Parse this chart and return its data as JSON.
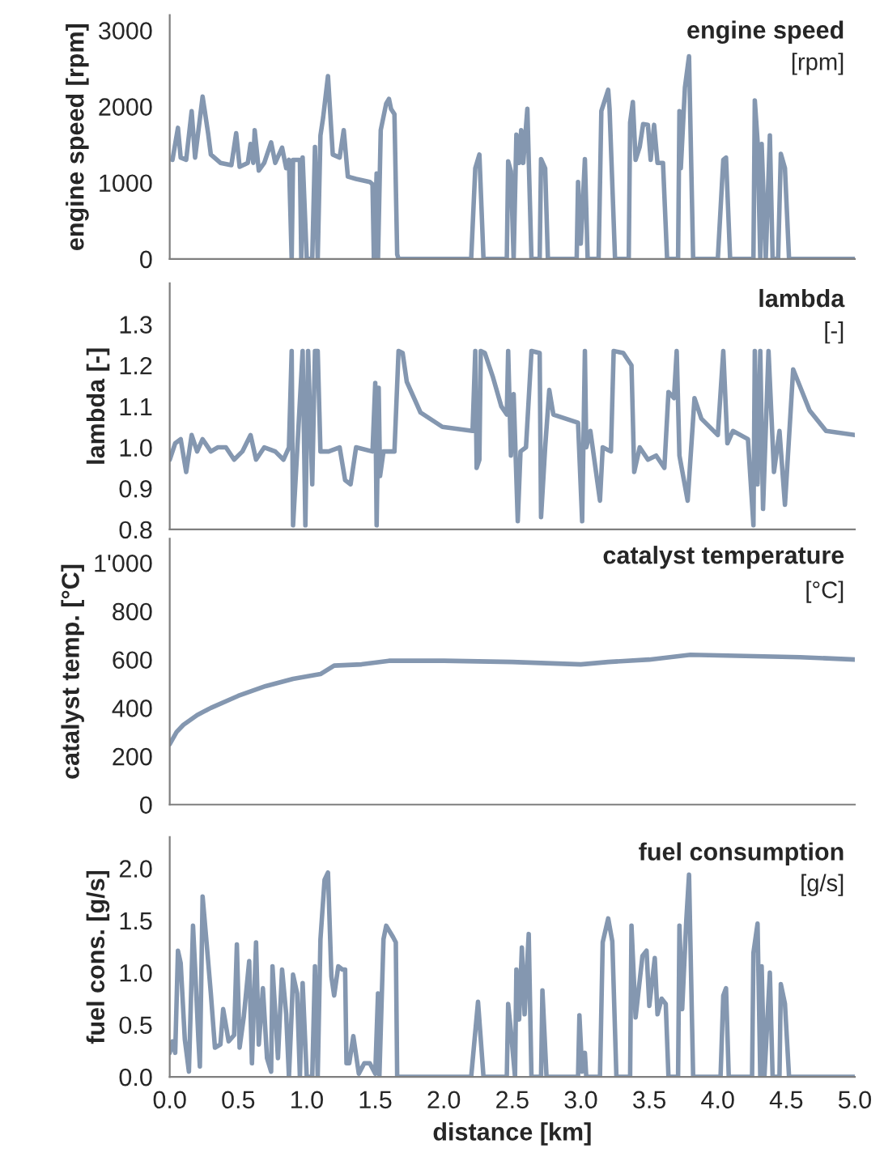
{
  "chart_data": [
    {
      "type": "line",
      "title": "engine speed",
      "subtitle": "[rpm]",
      "ylabel": "engine speed [rpm]",
      "xlim": [
        0,
        5
      ],
      "ylim": [
        0,
        3200
      ],
      "yticks": [
        0,
        1000,
        2000,
        3000
      ],
      "tick_labels": "y",
      "grid": false,
      "legend": false,
      "series": [
        {
          "color": "#8497b0",
          "x": [
            0.02,
            0.06,
            0.08,
            0.12,
            0.16,
            0.185,
            0.24,
            0.28,
            0.3,
            0.37,
            0.45,
            0.485,
            0.51,
            0.57,
            0.59,
            0.61,
            0.62,
            0.65,
            0.69,
            0.74,
            0.77,
            0.82,
            0.85,
            0.87,
            0.89,
            0.9,
            0.95,
            0.96,
            0.97,
            1.0,
            1.02,
            1.04,
            1.06,
            1.08,
            1.1,
            1.12,
            1.155,
            1.19,
            1.24,
            1.27,
            1.3,
            1.36,
            1.46,
            1.48,
            1.49,
            1.51,
            1.52,
            1.54,
            1.58,
            1.6,
            1.615,
            1.64,
            1.66,
            1.67,
            2.2,
            2.23,
            2.26,
            2.29,
            2.46,
            2.47,
            2.49,
            2.51,
            2.53,
            2.55,
            2.565,
            2.58,
            2.61,
            2.64,
            2.7,
            2.71,
            2.74,
            2.76,
            2.97,
            2.98,
            3.0,
            3.03,
            3.05,
            3.13,
            3.15,
            3.2,
            3.21,
            3.25,
            3.35,
            3.36,
            3.38,
            3.4,
            3.43,
            3.455,
            3.49,
            3.51,
            3.535,
            3.56,
            3.6,
            3.63,
            3.71,
            3.72,
            3.73,
            3.76,
            3.79,
            3.82,
            4.0,
            4.04,
            4.06,
            4.09,
            4.26,
            4.27,
            4.29,
            4.31,
            4.32,
            4.35,
            4.38,
            4.4,
            4.44,
            4.46,
            4.49,
            4.52,
            5.0
          ],
          "values": [
            1300,
            1720,
            1330,
            1300,
            1940,
            1330,
            2130,
            1650,
            1370,
            1260,
            1230,
            1650,
            1210,
            1260,
            1510,
            1260,
            1690,
            1160,
            1260,
            1530,
            1260,
            1460,
            1190,
            1300,
            0,
            1300,
            1300,
            0,
            1330,
            0,
            0,
            0,
            1470,
            0,
            1620,
            1860,
            2400,
            1370,
            1330,
            1690,
            1080,
            1050,
            1010,
            980,
            0,
            1120,
            0,
            1690,
            2040,
            2100,
            1970,
            1900,
            60,
            0,
            0,
            1190,
            1370,
            0,
            0,
            1280,
            1150,
            0,
            1630,
            1260,
            1690,
            1260,
            1970,
            0,
            0,
            1310,
            1190,
            0,
            0,
            1010,
            200,
            1310,
            0,
            0,
            1940,
            2220,
            1970,
            0,
            0,
            1790,
            2060,
            1300,
            1470,
            1770,
            1760,
            1300,
            1760,
            1260,
            1260,
            0,
            0,
            1940,
            1190,
            2250,
            2660,
            0,
            0,
            1300,
            1330,
            0,
            0,
            2080,
            1550,
            0,
            1510,
            0,
            1620,
            0,
            0,
            1380,
            1190,
            0,
            0
          ]
        }
      ]
    },
    {
      "type": "line",
      "title": "lambda",
      "subtitle": "[-]",
      "ylabel": "lambda [-]",
      "xlim": [
        0,
        5
      ],
      "ylim": [
        0.8,
        1.4
      ],
      "yticks": [
        {
          "value": 0.8,
          "label": "0.8"
        },
        {
          "value": 0.9,
          "label": "0.9"
        },
        {
          "value": 1.0,
          "label": "1.0"
        },
        {
          "value": 1.1,
          "label": "1.1"
        },
        {
          "value": 1.2,
          "label": "1.2"
        },
        {
          "value": 1.3,
          "label": "1.3"
        }
      ],
      "tick_labels": "y",
      "grid": false,
      "legend": false,
      "series": [
        {
          "color": "#8497b0",
          "x": [
            0,
            0.04,
            0.08,
            0.12,
            0.16,
            0.2,
            0.24,
            0.3,
            0.35,
            0.41,
            0.47,
            0.53,
            0.59,
            0.63,
            0.69,
            0.77,
            0.83,
            0.87,
            0.89,
            0.9,
            0.93,
            0.97,
            0.99,
            1.01,
            1.04,
            1.06,
            1.08,
            1.1,
            1.16,
            1.24,
            1.28,
            1.32,
            1.36,
            1.48,
            1.5,
            1.51,
            1.525,
            1.535,
            1.56,
            1.64,
            1.67,
            1.7,
            1.73,
            1.83,
            1.99,
            2.21,
            2.23,
            2.24,
            2.26,
            2.27,
            2.3,
            2.36,
            2.42,
            2.46,
            2.47,
            2.49,
            2.51,
            2.54,
            2.56,
            2.6,
            2.64,
            2.7,
            2.71,
            2.74,
            2.77,
            2.8,
            2.98,
            3.01,
            3.03,
            3.04,
            3.07,
            3.14,
            3.16,
            3.22,
            3.24,
            3.31,
            3.37,
            3.39,
            3.43,
            3.49,
            3.55,
            3.61,
            3.64,
            3.68,
            3.7,
            3.72,
            3.78,
            3.83,
            3.88,
            4.0,
            4.04,
            4.07,
            4.11,
            4.22,
            4.26,
            4.27,
            4.29,
            4.31,
            4.33,
            4.37,
            4.41,
            4.45,
            4.49,
            4.55,
            4.67,
            4.79,
            5.0
          ],
          "values": [
            0.97,
            1.01,
            1.02,
            0.94,
            1.03,
            0.99,
            1.02,
            0.99,
            1.0,
            1.0,
            0.97,
            0.99,
            1.03,
            0.97,
            1.0,
            0.99,
            0.97,
            1.0,
            1.235,
            0.81,
            0.99,
            1.235,
            0.81,
            1.235,
            0.91,
            1.235,
            1.235,
            0.99,
            0.99,
            1.0,
            0.92,
            0.91,
            1.0,
            0.99,
            1.157,
            0.81,
            1.145,
            0.93,
            0.99,
            0.99,
            1.235,
            1.23,
            1.16,
            1.085,
            1.05,
            1.04,
            1.235,
            0.95,
            0.97,
            1.235,
            1.23,
            1.17,
            1.1,
            1.08,
            1.235,
            0.98,
            1.13,
            0.82,
            0.99,
            1.0,
            1.235,
            1.23,
            0.83,
            1.0,
            1.14,
            1.08,
            1.06,
            0.82,
            1.235,
            1.0,
            1.04,
            0.87,
            1.0,
            0.99,
            1.235,
            1.23,
            1.2,
            0.94,
            1.0,
            0.97,
            0.98,
            0.95,
            1.135,
            1.12,
            1.235,
            0.98,
            0.87,
            1.12,
            1.07,
            1.03,
            1.235,
            1.01,
            1.04,
            1.02,
            0.81,
            1.235,
            0.91,
            1.235,
            0.85,
            1.235,
            0.94,
            1.04,
            0.86,
            1.19,
            1.09,
            1.04,
            1.03
          ]
        }
      ]
    },
    {
      "type": "line",
      "title": "catalyst temperature",
      "subtitle": "[°C]",
      "ylabel": "catalyst temp. [°C]",
      "xlim": [
        0,
        5
      ],
      "ylim": [
        0,
        1100
      ],
      "yticks": [
        0,
        200,
        400,
        600,
        800,
        {
          "value": 1000,
          "label": "1'000"
        }
      ],
      "tick_labels": "y",
      "grid": false,
      "legend": false,
      "series": [
        {
          "color": "#8497b0",
          "x": [
            0,
            0.05,
            0.1,
            0.2,
            0.3,
            0.5,
            0.7,
            0.9,
            1.0,
            1.1,
            1.2,
            1.4,
            1.6,
            2.0,
            2.5,
            3.0,
            3.2,
            3.5,
            3.8,
            4.2,
            4.6,
            5.0
          ],
          "values": [
            250,
            300,
            330,
            370,
            400,
            450,
            490,
            520,
            530,
            540,
            575,
            580,
            595,
            595,
            590,
            580,
            590,
            600,
            620,
            615,
            610,
            600
          ]
        }
      ]
    },
    {
      "type": "line",
      "title": "fuel consumption",
      "subtitle": "[g/s]",
      "ylabel": "fuel cons. [g/s]",
      "xlabel": "distance [km]",
      "xlim": [
        0,
        5
      ],
      "xticks": [
        {
          "value": 0,
          "label": "0.0"
        },
        {
          "value": 0.5,
          "label": "0.5"
        },
        {
          "value": 1,
          "label": "1.0"
        },
        {
          "value": 1.5,
          "label": "1.5"
        },
        {
          "value": 2,
          "label": "2.0"
        },
        {
          "value": 2.5,
          "label": "2.5"
        },
        {
          "value": 3,
          "label": "3.0"
        },
        {
          "value": 3.5,
          "label": "3.5"
        },
        {
          "value": 4,
          "label": "4.0"
        },
        {
          "value": 4.5,
          "label": "4.5"
        },
        {
          "value": 5,
          "label": "5.0"
        }
      ],
      "ylim": [
        0,
        2.3
      ],
      "yticks": [
        {
          "value": 0,
          "label": "0.0"
        },
        {
          "value": 0.5,
          "label": "0.5"
        },
        {
          "value": 1.0,
          "label": "1.0"
        },
        {
          "value": 1.5,
          "label": "1.5"
        },
        {
          "value": 2.0,
          "label": "2.0"
        }
      ],
      "grid": false,
      "legend": false,
      "series": [
        {
          "color": "#8497b0",
          "x": [
            0,
            0.02,
            0.04,
            0.06,
            0.08,
            0.11,
            0.14,
            0.17,
            0.185,
            0.21,
            0.22,
            0.24,
            0.27,
            0.3,
            0.33,
            0.37,
            0.39,
            0.43,
            0.47,
            0.49,
            0.51,
            0.54,
            0.58,
            0.6,
            0.63,
            0.65,
            0.68,
            0.71,
            0.74,
            0.75,
            0.79,
            0.82,
            0.85,
            0.87,
            0.89,
            0.9,
            0.93,
            0.95,
            0.97,
            1.0,
            1.04,
            1.06,
            1.08,
            1.1,
            1.13,
            1.155,
            1.18,
            1.2,
            1.23,
            1.26,
            1.28,
            1.29,
            1.31,
            1.34,
            1.38,
            1.42,
            1.46,
            1.5,
            1.52,
            1.53,
            1.56,
            1.58,
            1.63,
            1.65,
            1.66,
            2.2,
            2.25,
            2.29,
            2.46,
            2.47,
            2.49,
            2.52,
            2.53,
            2.55,
            2.57,
            2.59,
            2.62,
            2.64,
            2.71,
            2.72,
            2.75,
            2.98,
            2.99,
            3.01,
            3.03,
            3.04,
            3.14,
            3.16,
            3.2,
            3.23,
            3.26,
            3.36,
            3.37,
            3.4,
            3.45,
            3.48,
            3.5,
            3.54,
            3.56,
            3.59,
            3.62,
            3.64,
            3.71,
            3.72,
            3.74,
            3.77,
            3.79,
            3.82,
            4.02,
            4.04,
            4.06,
            4.08,
            4.25,
            4.26,
            4.29,
            4.31,
            4.32,
            4.34,
            4.38,
            4.4,
            4.45,
            4.46,
            4.49,
            4.52,
            5.0
          ],
          "values": [
            0.23,
            0.34,
            0.23,
            1.21,
            1.09,
            0.36,
            0.05,
            1.45,
            1.05,
            0.34,
            0.1,
            1.73,
            1.27,
            0.8,
            0.28,
            0.31,
            0.65,
            0.34,
            0.4,
            1.27,
            0.28,
            0.57,
            1.11,
            0.13,
            1.29,
            0.31,
            0.85,
            0.18,
            0.05,
            1.06,
            0.18,
            1.03,
            0.6,
            0,
            0.62,
            0.98,
            0.8,
            0,
            0.9,
            0,
            0,
            1.06,
            0,
            1.32,
            1.89,
            1.96,
            0.96,
            0.78,
            1.06,
            1.03,
            1.03,
            0.13,
            0.13,
            0.39,
            0.03,
            0.13,
            0.13,
            0.03,
            0.8,
            0,
            1.32,
            1.45,
            1.34,
            1.29,
            0,
            0,
            0.72,
            0,
            0,
            0.7,
            0.44,
            0,
            1.03,
            0.55,
            1.24,
            0.6,
            1.37,
            0,
            0,
            0.83,
            0,
            0,
            0.59,
            0.05,
            0.23,
            0,
            0,
            1.29,
            1.52,
            1.3,
            0,
            0,
            1.45,
            0.57,
            1.16,
            1.21,
            0.68,
            1.14,
            0.6,
            0.75,
            0.7,
            0,
            0,
            1.45,
            0.65,
            1.5,
            1.94,
            0,
            0,
            0.78,
            0.85,
            0,
            0,
            1.19,
            1.47,
            0,
            1.06,
            0,
            1.0,
            0,
            0,
            0.89,
            0.7,
            0,
            0
          ]
        }
      ]
    }
  ]
}
